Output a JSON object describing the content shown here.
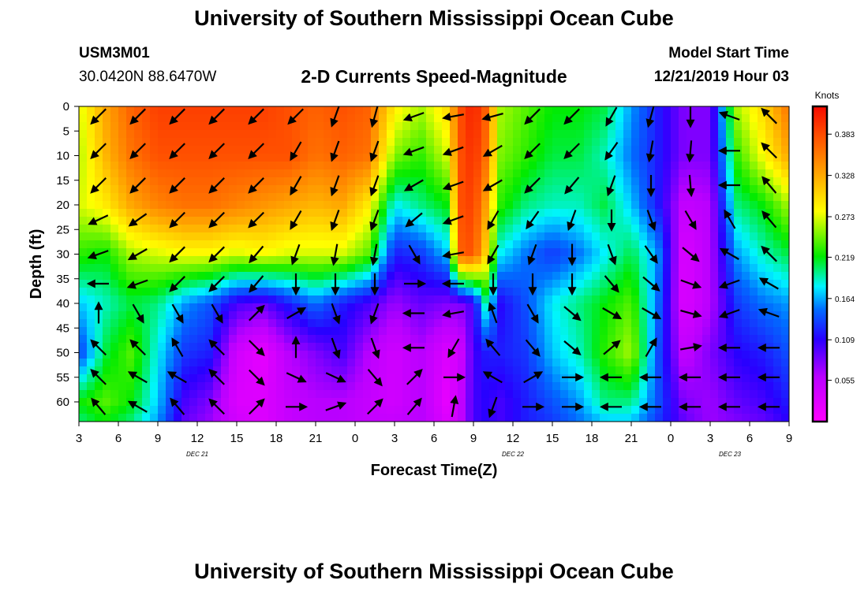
{
  "header": {
    "title": "University of Southern Mississippi Ocean Cube",
    "station_id": "USM3M01",
    "station_coords": "30.0420N 88.6470W",
    "subtitle": "2-D Currents Speed-Magnitude",
    "model_start_label": "Model Start Time",
    "model_start_value": "12/21/2019 Hour 03"
  },
  "footer": {
    "title": "University of Southern Mississippi Ocean Cube"
  },
  "chart_data": {
    "type": "heatmap",
    "subtype": "time-depth section with current vectors",
    "xlabel": "Forecast Time(Z)",
    "ylabel": "Depth (ft)",
    "x_tick_labels": [
      "3",
      "6",
      "9",
      "12",
      "15",
      "18",
      "21",
      "0",
      "3",
      "6",
      "9",
      "12",
      "15",
      "18",
      "21",
      "0",
      "3",
      "6",
      "9"
    ],
    "x_hours_from_start": [
      0,
      3,
      6,
      9,
      12,
      15,
      18,
      21,
      24,
      27,
      30,
      33,
      36,
      39,
      42,
      45,
      48,
      51,
      54
    ],
    "date_labels": [
      {
        "text": "DEC 21",
        "hour": 9
      },
      {
        "text": "DEC 22",
        "hour": 33
      },
      {
        "text": "DEC 23",
        "hour": 49.5
      }
    ],
    "y_ticks": [
      0,
      5,
      10,
      15,
      20,
      25,
      30,
      35,
      40,
      45,
      50,
      55,
      60
    ],
    "ylim": [
      0,
      64
    ],
    "y_inverted": true,
    "colorbar": {
      "title": "Knots",
      "tick_labels": [
        "0.383",
        "0.328",
        "0.273",
        "0.219",
        "0.164",
        "0.109",
        "0.055"
      ],
      "tick_values": [
        0.383,
        0.328,
        0.273,
        0.219,
        0.164,
        0.109,
        0.055
      ],
      "range": [
        0,
        0.42
      ]
    },
    "speed_hours": [
      0,
      2,
      4,
      6,
      8,
      10,
      12,
      14,
      16,
      18,
      20,
      22,
      24,
      26,
      28,
      29,
      30,
      31,
      32,
      34,
      36,
      38,
      40,
      42,
      44,
      46,
      48,
      50,
      52,
      54
    ],
    "speed_depths": [
      0,
      10,
      20,
      30,
      40,
      50,
      60,
      64
    ],
    "speed_knots": [
      [
        0.27,
        0.33,
        0.37,
        0.39,
        0.39,
        0.39,
        0.39,
        0.39,
        0.38,
        0.37,
        0.38,
        0.37,
        0.29,
        0.26,
        0.3,
        0.38,
        0.41,
        0.37,
        0.26,
        0.24,
        0.22,
        0.22,
        0.21,
        0.16,
        0.12,
        0.08,
        0.08,
        0.26,
        0.3,
        0.36
      ],
      [
        0.26,
        0.32,
        0.36,
        0.38,
        0.38,
        0.38,
        0.38,
        0.38,
        0.38,
        0.36,
        0.37,
        0.36,
        0.25,
        0.23,
        0.27,
        0.38,
        0.4,
        0.36,
        0.25,
        0.23,
        0.21,
        0.21,
        0.19,
        0.15,
        0.12,
        0.08,
        0.08,
        0.23,
        0.28,
        0.33
      ],
      [
        0.27,
        0.29,
        0.33,
        0.35,
        0.36,
        0.36,
        0.35,
        0.34,
        0.33,
        0.32,
        0.33,
        0.29,
        0.18,
        0.2,
        0.22,
        0.38,
        0.39,
        0.33,
        0.23,
        0.2,
        0.19,
        0.19,
        0.21,
        0.17,
        0.12,
        0.05,
        0.06,
        0.2,
        0.22,
        0.26
      ],
      [
        0.23,
        0.22,
        0.26,
        0.27,
        0.28,
        0.28,
        0.27,
        0.28,
        0.27,
        0.27,
        0.27,
        0.24,
        0.12,
        0.13,
        0.17,
        0.37,
        0.38,
        0.3,
        0.18,
        0.15,
        0.13,
        0.15,
        0.18,
        0.21,
        0.16,
        0.03,
        0.06,
        0.16,
        0.19,
        0.21
      ],
      [
        0.17,
        0.19,
        0.21,
        0.2,
        0.16,
        0.14,
        0.1,
        0.09,
        0.12,
        0.15,
        0.12,
        0.1,
        0.07,
        0.09,
        0.08,
        0.08,
        0.1,
        0.2,
        0.11,
        0.14,
        0.18,
        0.2,
        0.22,
        0.24,
        0.15,
        0.03,
        0.06,
        0.13,
        0.15,
        0.16
      ],
      [
        0.13,
        0.21,
        0.24,
        0.18,
        0.13,
        0.12,
        0.04,
        0.02,
        0.06,
        0.08,
        0.1,
        0.06,
        0.04,
        0.06,
        0.03,
        0.04,
        0.1,
        0.12,
        0.12,
        0.13,
        0.17,
        0.19,
        0.23,
        0.26,
        0.14,
        0.05,
        0.08,
        0.11,
        0.12,
        0.14
      ],
      [
        0.22,
        0.24,
        0.22,
        0.17,
        0.1,
        0.08,
        0.03,
        0.03,
        0.05,
        0.06,
        0.06,
        0.05,
        0.04,
        0.06,
        0.02,
        0.05,
        0.1,
        0.11,
        0.1,
        0.12,
        0.14,
        0.16,
        0.2,
        0.2,
        0.14,
        0.08,
        0.07,
        0.09,
        0.1,
        0.12
      ],
      [
        0.2,
        0.22,
        0.2,
        0.16,
        0.09,
        0.07,
        0.04,
        0.03,
        0.05,
        0.06,
        0.06,
        0.05,
        0.05,
        0.06,
        0.03,
        0.05,
        0.1,
        0.11,
        0.1,
        0.12,
        0.13,
        0.15,
        0.17,
        0.17,
        0.13,
        0.09,
        0.07,
        0.08,
        0.09,
        0.11
      ]
    ],
    "vector_hours": [
      1.5,
      4.5,
      7.5,
      10.5,
      13.5,
      16.5,
      19.5,
      22.5,
      25.5,
      28.5,
      31.5,
      34.5,
      37.5,
      40.5,
      43.5,
      46.5,
      49.5,
      52.5
    ],
    "vector_depths": [
      2,
      9,
      16,
      23,
      30,
      36,
      42,
      49,
      55,
      61
    ],
    "vector_dir_deg": [
      [
        225,
        225,
        225,
        225,
        225,
        225,
        200,
        195,
        250,
        260,
        255,
        225,
        225,
        210,
        195,
        180,
        290,
        315
      ],
      [
        225,
        225,
        225,
        225,
        225,
        210,
        200,
        200,
        250,
        250,
        240,
        225,
        225,
        215,
        190,
        185,
        270,
        315
      ],
      [
        225,
        225,
        225,
        225,
        225,
        210,
        200,
        200,
        240,
        250,
        240,
        225,
        220,
        200,
        180,
        175,
        270,
        320
      ],
      [
        245,
        235,
        225,
        225,
        225,
        210,
        200,
        200,
        230,
        250,
        210,
        215,
        200,
        180,
        160,
        150,
        330,
        320
      ],
      [
        250,
        240,
        225,
        225,
        220,
        200,
        190,
        190,
        150,
        260,
        210,
        200,
        180,
        160,
        145,
        130,
        300,
        315
      ],
      [
        270,
        250,
        225,
        225,
        220,
        180,
        180,
        180,
        90,
        270,
        180,
        180,
        180,
        140,
        130,
        110,
        250,
        300
      ],
      [
        0,
        150,
        150,
        150,
        45,
        60,
        160,
        200,
        270,
        260,
        340,
        150,
        130,
        120,
        120,
        105,
        250,
        290
      ],
      [
        315,
        315,
        330,
        315,
        135,
        0,
        160,
        160,
        270,
        210,
        320,
        140,
        130,
        50,
        30,
        80,
        270,
        270
      ],
      [
        315,
        300,
        300,
        315,
        135,
        115,
        115,
        140,
        45,
        90,
        300,
        60,
        90,
        270,
        270,
        270,
        270,
        270
      ],
      [
        320,
        300,
        320,
        315,
        45,
        90,
        70,
        45,
        40,
        10,
        200,
        90,
        90,
        270,
        270,
        270,
        270,
        270
      ]
    ]
  }
}
